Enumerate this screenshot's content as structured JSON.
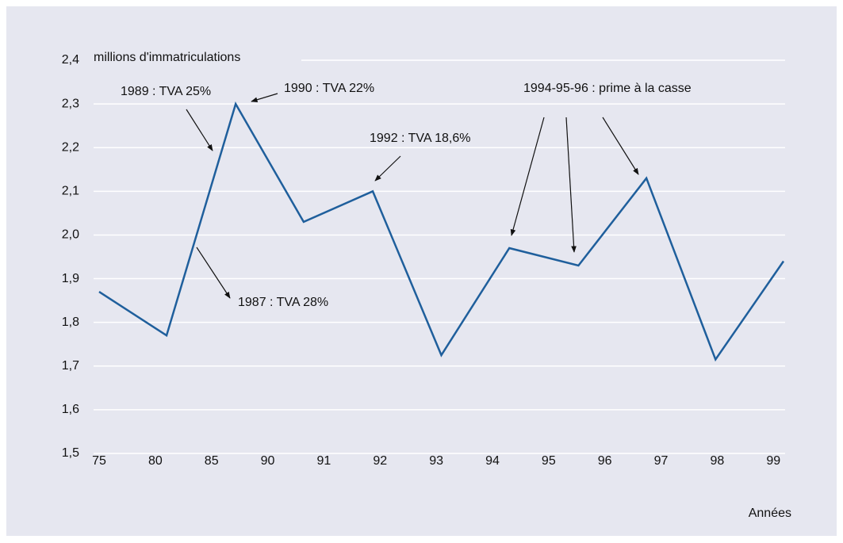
{
  "chart_data": {
    "type": "line",
    "ylabel": "millions d'immatriculations",
    "xlabel": "Années",
    "xticks": [
      {
        "value": 0,
        "label": "75"
      },
      {
        "value": 1,
        "label": "80"
      },
      {
        "value": 2,
        "label": "85"
      },
      {
        "value": 3,
        "label": "90"
      },
      {
        "value": 4,
        "label": "91"
      },
      {
        "value": 5,
        "label": "92"
      },
      {
        "value": 6,
        "label": "93"
      },
      {
        "value": 7,
        "label": "94"
      },
      {
        "value": 8,
        "label": "95"
      },
      {
        "value": 9,
        "label": "96"
      },
      {
        "value": 10,
        "label": "97"
      },
      {
        "value": 11,
        "label": "98"
      },
      {
        "value": 12,
        "label": "99"
      }
    ],
    "xlim": [
      0,
      12.18
    ],
    "ylim": [
      1.5,
      2.4
    ],
    "yticks": [
      {
        "value": 1.5,
        "label": "1,5"
      },
      {
        "value": 1.6,
        "label": "1,6"
      },
      {
        "value": 1.7,
        "label": "1,7"
      },
      {
        "value": 1.8,
        "label": "1,8"
      },
      {
        "value": 1.9,
        "label": "1,9"
      },
      {
        "value": 2.0,
        "label": "2,0"
      },
      {
        "value": 2.1,
        "label": "2,1"
      },
      {
        "value": 2.2,
        "label": "2,2"
      },
      {
        "value": 2.3,
        "label": "2,3"
      },
      {
        "value": 2.4,
        "label": "2,4"
      }
    ],
    "grid": true,
    "series": [
      {
        "color": "#1f5f9c",
        "x": [
          0,
          1.2,
          2.43,
          3.64,
          4.87,
          6.09,
          7.3,
          8.53,
          9.74,
          10.97,
          12.18
        ],
        "values": [
          1.87,
          1.77,
          2.3,
          2.03,
          2.1,
          1.725,
          1.97,
          1.93,
          2.13,
          1.715,
          1.94
        ]
      }
    ],
    "annotations": [
      "1989 : TVA 25%",
      "1990 : TVA 22%",
      "1992 : TVA 18,6%",
      "1987 : TVA 28%",
      "1994-95-96 : prime à la casse"
    ]
  }
}
